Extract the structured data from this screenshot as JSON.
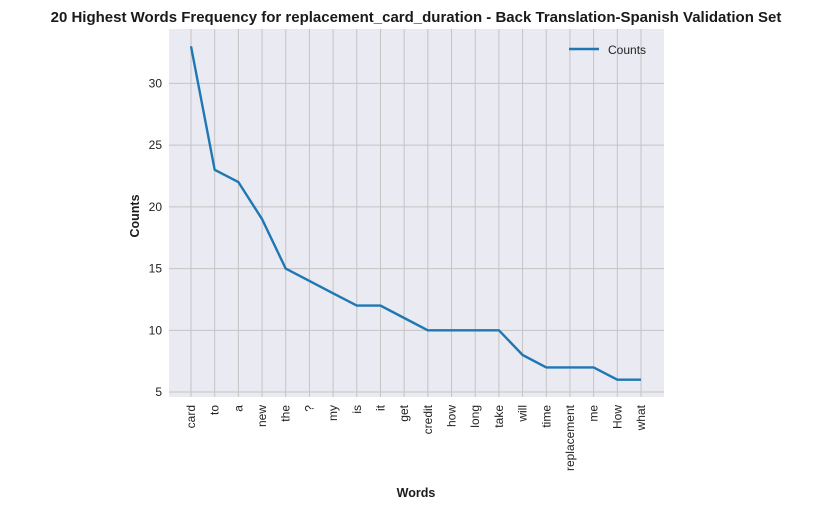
{
  "chart_data": {
    "type": "line",
    "title": "20 Highest Words Frequency for replacement_card_duration - Back Translation-Spanish Validation Set",
    "xlabel": "Words",
    "ylabel": "Counts",
    "categories": [
      "card",
      "to",
      "a",
      "new",
      "the",
      "?",
      "my",
      "is",
      "it",
      "get",
      "credit",
      "how",
      "long",
      "take",
      "will",
      "time",
      "replacement",
      "me",
      "How",
      "what"
    ],
    "series": [
      {
        "name": "Counts",
        "values": [
          33,
          23,
          22,
          19,
          15,
          14,
          13,
          12,
          12,
          11,
          10,
          10,
          10,
          10,
          8,
          7,
          7,
          7,
          6,
          6
        ]
      }
    ],
    "ylim": [
      4.6,
      34.4
    ],
    "yticks": [
      5,
      10,
      15,
      20,
      25,
      30
    ],
    "grid": true,
    "legend_position": "top-right",
    "colors": {
      "line": "#1f77b4",
      "plot_bg": "#eaeaf2",
      "grid": "#c4c4c4"
    }
  }
}
